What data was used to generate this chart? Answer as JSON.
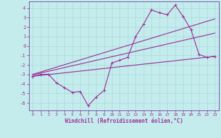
{
  "xlabel": "Windchill (Refroidissement éolien,°C)",
  "bg_color": "#c5eced",
  "grid_color": "#a8d8d8",
  "line_color": "#993399",
  "spine_color": "#7755aa",
  "xlim": [
    -0.5,
    23.5
  ],
  "ylim": [
    -6.8,
    4.7
  ],
  "yticks": [
    -6,
    -5,
    -4,
    -3,
    -2,
    -1,
    0,
    1,
    2,
    3,
    4
  ],
  "xticks": [
    0,
    1,
    2,
    3,
    4,
    5,
    6,
    7,
    8,
    9,
    10,
    11,
    12,
    13,
    14,
    15,
    16,
    17,
    18,
    19,
    20,
    21,
    22,
    23
  ],
  "line1_x": [
    0,
    1,
    2,
    3,
    4,
    5,
    6,
    7,
    8,
    9,
    10,
    11,
    12,
    13,
    14,
    15,
    16,
    17,
    18,
    19,
    20,
    21,
    22,
    23
  ],
  "line1_y": [
    -3.2,
    -3.0,
    -3.0,
    -3.9,
    -4.4,
    -4.9,
    -4.8,
    -6.3,
    -5.4,
    -4.7,
    -1.8,
    -1.5,
    -1.2,
    1.0,
    2.3,
    3.8,
    3.5,
    3.3,
    4.3,
    3.1,
    1.7,
    -0.9,
    -1.2,
    -1.1
  ],
  "line2_x": [
    0,
    23
  ],
  "line2_y": [
    -3.2,
    -1.1
  ],
  "line3_x": [
    0,
    23
  ],
  "line3_y": [
    -3.0,
    2.85
  ],
  "line4_x": [
    0,
    23
  ],
  "line4_y": [
    -3.05,
    1.35
  ]
}
